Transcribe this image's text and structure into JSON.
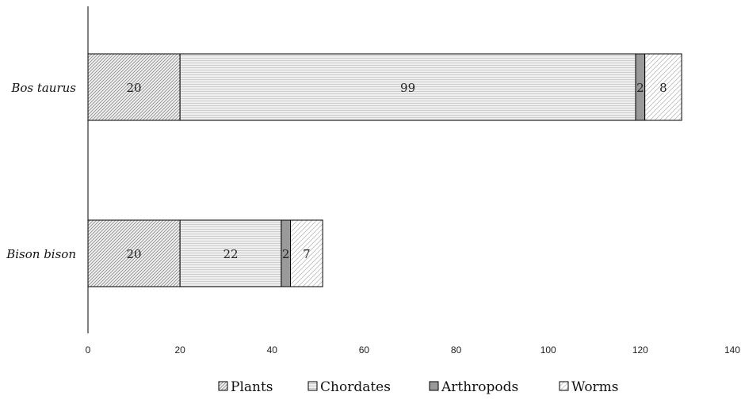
{
  "chart_data": {
    "type": "bar",
    "orientation": "horizontal",
    "stacked": true,
    "categories": [
      "Bos taurus",
      "Bison bison"
    ],
    "series": [
      {
        "name": "Plants",
        "values": [
          20,
          20
        ],
        "pattern": "diag-dense",
        "color": "#d8d8d8"
      },
      {
        "name": "Chordates",
        "values": [
          99,
          22
        ],
        "pattern": "horizontal-lines",
        "color": "#e6e6e6"
      },
      {
        "name": "Arthropods",
        "values": [
          2,
          2
        ],
        "pattern": "solid",
        "color": "#9a9a9a"
      },
      {
        "name": "Worms",
        "values": [
          8,
          7
        ],
        "pattern": "diag-sparse",
        "color": "#f2f2f2"
      }
    ],
    "data_labels": [
      [
        "20",
        "99",
        "2",
        "8"
      ],
      [
        "20",
        "22",
        "2",
        "7"
      ]
    ],
    "xlim": [
      0,
      140
    ],
    "xticks": [
      0,
      20,
      40,
      60,
      80,
      100,
      120,
      140
    ],
    "title": "",
    "xlabel": "",
    "ylabel": "",
    "grid": false,
    "legend_position": "bottom"
  }
}
